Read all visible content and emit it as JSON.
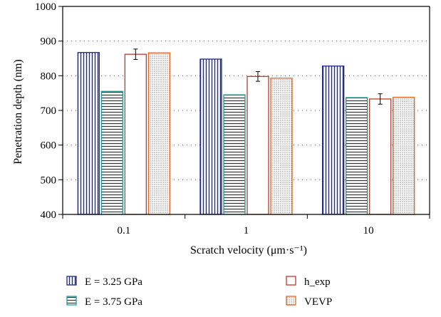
{
  "chart_data": {
    "type": "bar",
    "categories": [
      "0.1",
      "1",
      "10"
    ],
    "xlabel": "Scratch velocity (μm·s⁻¹)",
    "ylabel": "Penetration depth (nm)",
    "ylim": [
      400,
      1000
    ],
    "yticks": [
      "400",
      "500",
      "600",
      "700",
      "800",
      "900",
      "1000"
    ],
    "grid": "horizontal-dotted",
    "legend_position": "bottom",
    "series": [
      {
        "name": "E = 3.25 GPa",
        "values": [
          867,
          848,
          828
        ],
        "color": "#1f2a8a",
        "pattern": "vertical-lines"
      },
      {
        "name": "E = 3.75 GPa",
        "values": [
          755,
          745,
          737
        ],
        "color": "#1a9e98",
        "pattern": "horizontal-lines"
      },
      {
        "name": "h_exp",
        "values": [
          862,
          798,
          733
        ],
        "errors": [
          15,
          14,
          15
        ],
        "color": "#c0392b",
        "pattern": "solid-white"
      },
      {
        "name": "VEVP",
        "values": [
          866,
          793,
          738
        ],
        "color": "#e8641e",
        "pattern": "dots"
      }
    ]
  }
}
